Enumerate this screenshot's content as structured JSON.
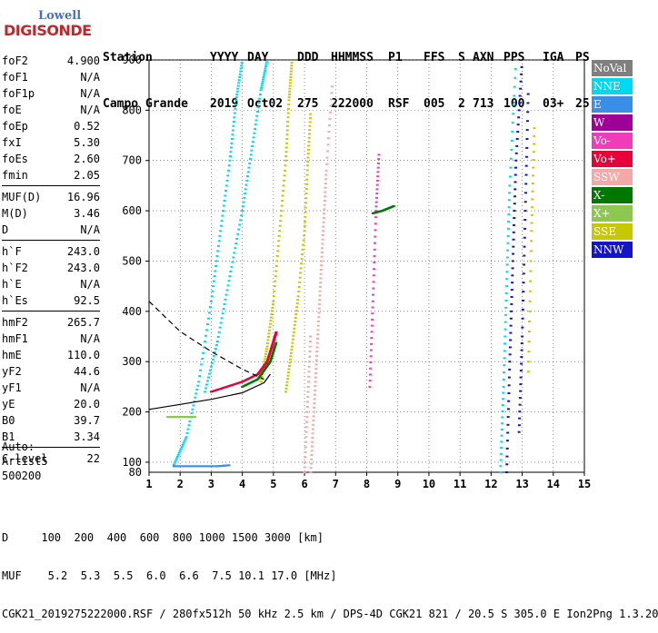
{
  "logo": {
    "line1": "Lowell",
    "line2": "DIGISONDE"
  },
  "header": {
    "row1": [
      "Station",
      "YYYY",
      "DAY",
      "DDD",
      "HHMMSS",
      "P1",
      "FFS",
      "S",
      "AXN",
      "PPS",
      "IGA",
      "PS"
    ],
    "row2": [
      "Campo Grande",
      "2019",
      "Oct02",
      "275",
      "222000",
      "RSF",
      "005",
      "2",
      "713",
      "100",
      "03+",
      "25"
    ]
  },
  "params": {
    "group1": [
      {
        "k": "foF2",
        "v": "4.900"
      },
      {
        "k": "foF1",
        "v": "N/A"
      },
      {
        "k": "foF1p",
        "v": "N/A"
      },
      {
        "k": "foE",
        "v": "N/A"
      },
      {
        "k": "foEp",
        "v": "0.52"
      },
      {
        "k": "fxI",
        "v": "5.30"
      },
      {
        "k": "foEs",
        "v": "2.60"
      },
      {
        "k": "fmin",
        "v": "2.05"
      }
    ],
    "group2": [
      {
        "k": "MUF(D)",
        "v": "16.96"
      },
      {
        "k": "M(D)",
        "v": "3.46"
      },
      {
        "k": "D",
        "v": "N/A"
      }
    ],
    "group3": [
      {
        "k": "h`F",
        "v": "243.0"
      },
      {
        "k": "h`F2",
        "v": "243.0"
      },
      {
        "k": "h`E",
        "v": "N/A"
      },
      {
        "k": "h`Es",
        "v": "92.5"
      }
    ],
    "group4": [
      {
        "k": "hmF2",
        "v": "265.7"
      },
      {
        "k": "hmF1",
        "v": "N/A"
      },
      {
        "k": "hmE",
        "v": "110.0"
      },
      {
        "k": "yF2",
        "v": "44.6"
      },
      {
        "k": "yF1",
        "v": "N/A"
      },
      {
        "k": "yE",
        "v": "20.0"
      },
      {
        "k": "B0",
        "v": "39.7"
      },
      {
        "k": "B1",
        "v": "3.34"
      }
    ],
    "group5": [
      {
        "k": "C-level",
        "v": "22"
      }
    ]
  },
  "auto": {
    "line1": "Auto:",
    "line2": "Artist5",
    "line3": "500200"
  },
  "legend": [
    {
      "label": "NoVal",
      "color": "#7f7f7f"
    },
    {
      "label": "NNE",
      "color": "#00d8f0"
    },
    {
      "label": "E",
      "color": "#3a8ee8"
    },
    {
      "label": "W",
      "color": "#a0009a"
    },
    {
      "label": "Vo-",
      "color": "#f03cb8"
    },
    {
      "label": "Vo+",
      "color": "#e8003a"
    },
    {
      "label": "SSW",
      "color": "#f5a8a8"
    },
    {
      "label": "X-",
      "color": "#007800"
    },
    {
      "label": "X+",
      "color": "#8cc850"
    },
    {
      "label": "SSE",
      "color": "#c8c800"
    },
    {
      "label": "NNW",
      "color": "#1414c8"
    }
  ],
  "footer": {
    "line1": "D     100  200  400  600  800 1000 1500 3000 [km]",
    "line2": "MUF    5.2  5.3  5.5  6.0  6.6  7.5 10.1 17.0 [MHz]",
    "line3": "CGK21_2019275222000.RSF / 280fx512h 50 kHz 2.5 km / DPS-4D CGK21 821 / 20.5 S 305.0 E Ion2Png 1.3.20"
  },
  "chart_data": {
    "type": "scatter",
    "xlim": [
      1,
      15
    ],
    "ylim": [
      80,
      900
    ],
    "x_ticks": [
      1,
      2,
      3,
      4,
      5,
      6,
      7,
      8,
      9,
      10,
      11,
      12,
      13,
      14,
      15
    ],
    "y_ticks": [
      100,
      200,
      300,
      400,
      500,
      600,
      700,
      800,
      900
    ],
    "y_tick_label_80": "80",
    "grid": "dotted vertical and horizontal",
    "traces": [
      {
        "name": "NNE",
        "color": "#00d8f0",
        "points": [
          [
            1.8,
            95
          ],
          [
            2.2,
            150
          ],
          [
            2.6,
            260
          ],
          [
            3.0,
            420
          ],
          [
            3.3,
            560
          ],
          [
            3.6,
            700
          ],
          [
            3.8,
            820
          ],
          [
            4.0,
            900
          ]
        ]
      },
      {
        "name": "NNE",
        "color": "#00d8f0",
        "points": [
          [
            2.8,
            240
          ],
          [
            3.2,
            340
          ],
          [
            3.6,
            470
          ],
          [
            4.0,
            600
          ],
          [
            4.3,
            720
          ],
          [
            4.6,
            840
          ],
          [
            4.8,
            900
          ]
        ]
      },
      {
        "name": "SSE",
        "color": "#c8c800",
        "points": [
          [
            4.6,
            260
          ],
          [
            4.8,
            330
          ],
          [
            5.0,
            420
          ],
          [
            5.2,
            560
          ],
          [
            5.4,
            700
          ],
          [
            5.5,
            820
          ],
          [
            5.6,
            900
          ]
        ]
      },
      {
        "name": "SSE",
        "color": "#c8c800",
        "points": [
          [
            5.4,
            240
          ],
          [
            5.6,
            330
          ],
          [
            5.8,
            430
          ],
          [
            6.0,
            560
          ],
          [
            6.1,
            690
          ],
          [
            6.2,
            800
          ]
        ]
      },
      {
        "name": "SSW",
        "color": "#f5a8a8",
        "points": [
          [
            6.2,
            80
          ],
          [
            6.3,
            200
          ],
          [
            6.4,
            320
          ],
          [
            6.5,
            440
          ],
          [
            6.6,
            560
          ],
          [
            6.7,
            680
          ],
          [
            6.9,
            860
          ]
        ]
      },
      {
        "name": "SSW",
        "color": "#f5a8a8",
        "points": [
          [
            6.0,
            80
          ],
          [
            6.1,
            220
          ],
          [
            6.2,
            360
          ]
        ]
      },
      {
        "name": "Vo+",
        "color": "#e8003a",
        "points": [
          [
            3.0,
            240
          ],
          [
            3.5,
            250
          ],
          [
            4.0,
            260
          ],
          [
            4.5,
            275
          ],
          [
            4.8,
            300
          ],
          [
            5.0,
            340
          ],
          [
            5.1,
            360
          ]
        ]
      },
      {
        "name": "X-",
        "color": "#007800",
        "points": [
          [
            4.0,
            250
          ],
          [
            4.5,
            265
          ],
          [
            4.9,
            300
          ],
          [
            5.1,
            340
          ]
        ]
      },
      {
        "name": "Vo-",
        "color": "#f03cb8",
        "points": [
          [
            8.1,
            250
          ],
          [
            8.2,
            420
          ],
          [
            8.3,
            600
          ],
          [
            8.4,
            720
          ]
        ]
      },
      {
        "name": "X-",
        "color": "#007800",
        "points": [
          [
            8.2,
            595
          ],
          [
            8.5,
            600
          ],
          [
            8.9,
            610
          ]
        ]
      },
      {
        "name": "NNE",
        "color": "#00d8f0",
        "points": [
          [
            12.3,
            80
          ],
          [
            12.4,
            250
          ],
          [
            12.5,
            450
          ],
          [
            12.6,
            650
          ],
          [
            12.8,
            900
          ]
        ]
      },
      {
        "name": "NNW",
        "color": "#1414c8",
        "points": [
          [
            12.5,
            80
          ],
          [
            12.6,
            300
          ],
          [
            12.7,
            500
          ],
          [
            12.8,
            700
          ],
          [
            13.0,
            900
          ]
        ]
      },
      {
        "name": "NNW",
        "color": "#1414c8",
        "points": [
          [
            12.9,
            160
          ],
          [
            13.0,
            350
          ],
          [
            13.1,
            600
          ],
          [
            13.2,
            850
          ]
        ]
      },
      {
        "name": "SSE",
        "color": "#c8c800",
        "points": [
          [
            13.2,
            280
          ],
          [
            13.3,
            560
          ],
          [
            13.4,
            780
          ]
        ]
      },
      {
        "name": "E",
        "color": "#3a8ee8",
        "points": [
          [
            1.8,
            92
          ],
          [
            2.5,
            92
          ],
          [
            3.2,
            92
          ],
          [
            3.6,
            94
          ]
        ]
      },
      {
        "name": "X+",
        "color": "#8cc850",
        "points": [
          [
            1.6,
            190
          ],
          [
            1.9,
            190
          ],
          [
            2.2,
            190
          ],
          [
            2.5,
            190
          ]
        ]
      }
    ],
    "profile": {
      "dashed_upper": [
        [
          1.0,
          420
        ],
        [
          2.0,
          360
        ],
        [
          3.0,
          320
        ],
        [
          4.0,
          285
        ],
        [
          4.7,
          265
        ]
      ],
      "solid_lower": [
        [
          1.0,
          205
        ],
        [
          2.0,
          215
        ],
        [
          3.0,
          225
        ],
        [
          4.0,
          238
        ],
        [
          4.7,
          258
        ],
        [
          4.9,
          275
        ]
      ]
    }
  }
}
